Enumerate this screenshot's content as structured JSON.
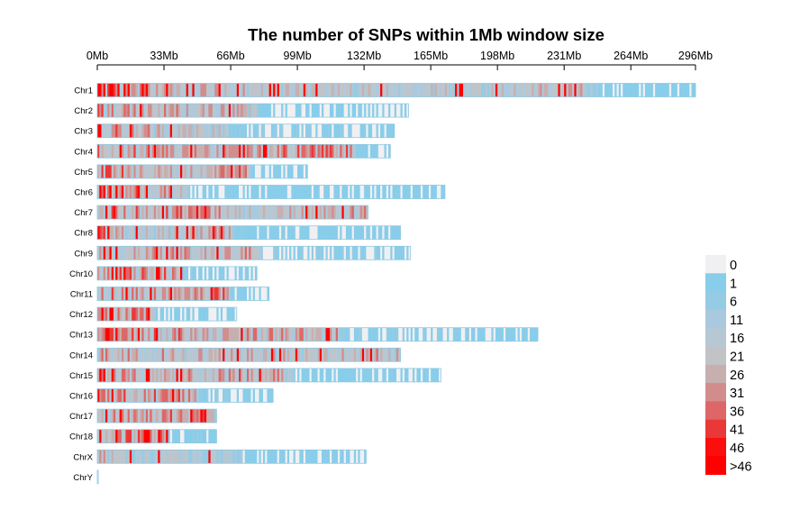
{
  "chart_data": {
    "type": "heatmap",
    "title": "The number of SNPs within 1Mb window size",
    "x_axis": {
      "position": "top",
      "unit": "Mb",
      "range": [
        0,
        296
      ],
      "ticks": [
        0,
        33,
        66,
        99,
        132,
        165,
        198,
        231,
        264,
        296
      ],
      "tick_labels": [
        "0Mb",
        "33Mb",
        "66Mb",
        "99Mb",
        "132Mb",
        "165Mb",
        "198Mb",
        "231Mb",
        "264Mb",
        "296Mb"
      ]
    },
    "chromosomes": [
      {
        "name": "Chr1",
        "length_mb": 296,
        "profile": [
          [
            0,
            40
          ],
          [
            28,
            22
          ],
          [
            80,
            20
          ],
          [
            150,
            18
          ],
          [
            240,
            22
          ],
          [
            250,
            4
          ],
          [
            296,
            2
          ]
        ]
      },
      {
        "name": "Chr2",
        "length_mb": 154,
        "profile": [
          [
            0,
            30
          ],
          [
            40,
            25
          ],
          [
            78,
            22
          ],
          [
            80,
            3
          ],
          [
            154,
            2
          ]
        ]
      },
      {
        "name": "Chr3",
        "length_mb": 147,
        "profile": [
          [
            0,
            33
          ],
          [
            30,
            22
          ],
          [
            64,
            18
          ],
          [
            66,
            6
          ],
          [
            130,
            4
          ],
          [
            147,
            3
          ]
        ]
      },
      {
        "name": "Chr4",
        "length_mb": 145,
        "profile": [
          [
            0,
            30
          ],
          [
            60,
            24
          ],
          [
            110,
            30
          ],
          [
            126,
            28
          ],
          [
            128,
            3
          ],
          [
            145,
            2
          ]
        ]
      },
      {
        "name": "Chr5",
        "length_mb": 104,
        "profile": [
          [
            0,
            30
          ],
          [
            50,
            24
          ],
          [
            75,
            28
          ],
          [
            77,
            3
          ],
          [
            104,
            2
          ]
        ]
      },
      {
        "name": "Chr6",
        "length_mb": 172,
        "profile": [
          [
            0,
            40
          ],
          [
            30,
            26
          ],
          [
            43,
            24
          ],
          [
            46,
            4
          ],
          [
            172,
            3
          ]
        ]
      },
      {
        "name": "Chr7",
        "length_mb": 134,
        "profile": [
          [
            0,
            26
          ],
          [
            50,
            32
          ],
          [
            75,
            20
          ],
          [
            134,
            25
          ]
        ]
      },
      {
        "name": "Chr8",
        "length_mb": 150,
        "profile": [
          [
            0,
            35
          ],
          [
            20,
            18
          ],
          [
            66,
            25
          ],
          [
            68,
            4
          ],
          [
            150,
            3
          ]
        ]
      },
      {
        "name": "Chr9",
        "length_mb": 155,
        "profile": [
          [
            0,
            35
          ],
          [
            40,
            24
          ],
          [
            80,
            26
          ],
          [
            82,
            6
          ],
          [
            155,
            4
          ]
        ]
      },
      {
        "name": "Chr10",
        "length_mb": 79,
        "profile": [
          [
            0,
            30
          ],
          [
            40,
            28
          ],
          [
            42,
            5
          ],
          [
            79,
            4
          ]
        ]
      },
      {
        "name": "Chr11",
        "length_mb": 85,
        "profile": [
          [
            0,
            28
          ],
          [
            40,
            24
          ],
          [
            64,
            30
          ],
          [
            66,
            4
          ],
          [
            85,
            4
          ]
        ]
      },
      {
        "name": "Chr12",
        "length_mb": 69,
        "profile": [
          [
            0,
            34
          ],
          [
            28,
            30
          ],
          [
            29,
            4
          ],
          [
            69,
            3
          ]
        ]
      },
      {
        "name": "Chr13",
        "length_mb": 218,
        "profile": [
          [
            0,
            36
          ],
          [
            60,
            24
          ],
          [
            119,
            26
          ],
          [
            121,
            5
          ],
          [
            218,
            3
          ]
        ]
      },
      {
        "name": "Chr14",
        "length_mb": 150,
        "profile": [
          [
            0,
            26
          ],
          [
            75,
            22
          ],
          [
            150,
            24
          ]
        ]
      },
      {
        "name": "Chr15",
        "length_mb": 170,
        "profile": [
          [
            0,
            28
          ],
          [
            40,
            24
          ],
          [
            90,
            30
          ],
          [
            95,
            12
          ],
          [
            100,
            4
          ],
          [
            170,
            3
          ]
        ]
      },
      {
        "name": "Chr16",
        "length_mb": 87,
        "profile": [
          [
            0,
            30
          ],
          [
            50,
            26
          ],
          [
            52,
            5
          ],
          [
            87,
            4
          ]
        ]
      },
      {
        "name": "Chr17",
        "length_mb": 59,
        "profile": [
          [
            0,
            24
          ],
          [
            30,
            26
          ],
          [
            56,
            33
          ],
          [
            59,
            5
          ]
        ]
      },
      {
        "name": "Chr18",
        "length_mb": 59,
        "profile": [
          [
            0,
            32
          ],
          [
            33,
            30
          ],
          [
            35,
            5
          ],
          [
            59,
            4
          ]
        ]
      },
      {
        "name": "ChrX",
        "length_mb": 133,
        "profile": [
          [
            0,
            22
          ],
          [
            20,
            16
          ],
          [
            70,
            14
          ],
          [
            73,
            3
          ],
          [
            133,
            2
          ]
        ]
      },
      {
        "name": "ChrY",
        "length_mb": 0.5,
        "profile": [
          [
            0,
            2
          ],
          [
            0.5,
            2
          ]
        ]
      }
    ],
    "legend": {
      "position": "right",
      "bins": [
        {
          "label": "0",
          "color": "#f0f0f2"
        },
        {
          "label": "1",
          "color": "#88cdea"
        },
        {
          "label": "6",
          "color": "#96cbe4"
        },
        {
          "label": "11",
          "color": "#a9cade"
        },
        {
          "label": "16",
          "color": "#b6c8d4"
        },
        {
          "label": "21",
          "color": "#c1c3c7"
        },
        {
          "label": "26",
          "color": "#c8afaf"
        },
        {
          "label": "31",
          "color": "#d38c8c"
        },
        {
          "label": "36",
          "color": "#dd6767"
        },
        {
          "label": "41",
          "color": "#ea3838"
        },
        {
          "label": "46",
          "color": "#fb0e0e"
        },
        {
          "label": ">46",
          "color": "#ff0000"
        }
      ]
    },
    "grid": false
  }
}
